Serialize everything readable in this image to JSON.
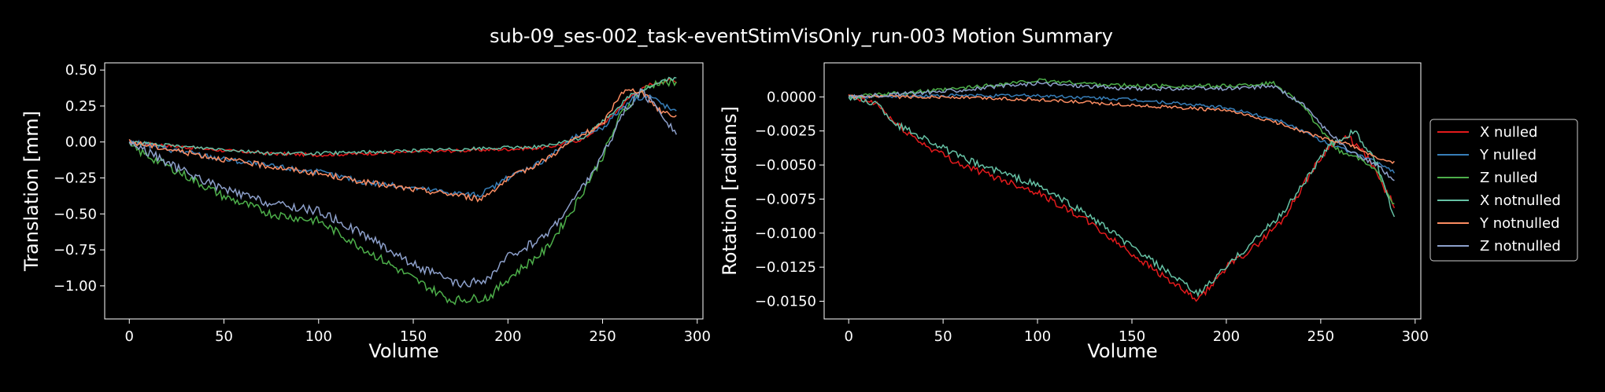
{
  "figure": {
    "title": "sub-09_ses-002_task-eventStimVisOnly_run-003 Motion Summary",
    "background": "#000000"
  },
  "legend": {
    "entries": [
      {
        "label": "X nulled",
        "color": "#e41a1c"
      },
      {
        "label": "Y nulled",
        "color": "#377eb8"
      },
      {
        "label": "Z nulled",
        "color": "#4daf4a"
      },
      {
        "label": "X notnulled",
        "color": "#66c2a5"
      },
      {
        "label": "Y notnulled",
        "color": "#fc8d62"
      },
      {
        "label": "Z notnulled",
        "color": "#8da0cb"
      }
    ]
  },
  "chart_data": [
    {
      "type": "line",
      "xlabel": "Volume",
      "ylabel": "Translation [mm]",
      "xlim": [
        -13,
        303
      ],
      "ylim": [
        -1.23,
        0.55
      ],
      "xticks": [
        0,
        50,
        100,
        150,
        200,
        250,
        300
      ],
      "yticks": [
        0.5,
        0.25,
        0.0,
        -0.25,
        -0.5,
        -0.75,
        -1.0
      ],
      "ytick_labels": [
        "0.50",
        "0.25",
        "0.00",
        "−0.25",
        "−0.50",
        "−0.75",
        "−1.00"
      ],
      "series": [
        {
          "name": "X nulled",
          "color": "#e41a1c",
          "points": [
            [
              0,
              0.0
            ],
            [
              25,
              -0.03
            ],
            [
              50,
              -0.06
            ],
            [
              75,
              -0.08
            ],
            [
              100,
              -0.09
            ],
            [
              125,
              -0.08
            ],
            [
              150,
              -0.07
            ],
            [
              175,
              -0.06
            ],
            [
              200,
              -0.05
            ],
            [
              220,
              -0.04
            ],
            [
              240,
              0.02
            ],
            [
              255,
              0.18
            ],
            [
              265,
              0.32
            ],
            [
              275,
              0.4
            ],
            [
              285,
              0.43
            ],
            [
              289,
              0.42
            ]
          ],
          "noise": 0.012
        },
        {
          "name": "Y nulled",
          "color": "#377eb8",
          "points": [
            [
              0,
              0.0
            ],
            [
              25,
              -0.06
            ],
            [
              50,
              -0.12
            ],
            [
              75,
              -0.17
            ],
            [
              100,
              -0.21
            ],
            [
              125,
              -0.28
            ],
            [
              150,
              -0.32
            ],
            [
              175,
              -0.36
            ],
            [
              185,
              -0.37
            ],
            [
              200,
              -0.25
            ],
            [
              220,
              -0.12
            ],
            [
              235,
              0.03
            ],
            [
              250,
              0.1
            ],
            [
              265,
              0.3
            ],
            [
              275,
              0.32
            ],
            [
              289,
              0.2
            ]
          ],
          "noise": 0.02
        },
        {
          "name": "Z nulled",
          "color": "#4daf4a",
          "points": [
            [
              0,
              -0.03
            ],
            [
              25,
              -0.2
            ],
            [
              50,
              -0.38
            ],
            [
              75,
              -0.5
            ],
            [
              100,
              -0.55
            ],
            [
              125,
              -0.75
            ],
            [
              150,
              -0.95
            ],
            [
              170,
              -1.1
            ],
            [
              190,
              -1.08
            ],
            [
              200,
              -0.95
            ],
            [
              220,
              -0.75
            ],
            [
              235,
              -0.45
            ],
            [
              250,
              -0.1
            ],
            [
              260,
              0.2
            ],
            [
              270,
              0.35
            ],
            [
              280,
              0.42
            ],
            [
              289,
              0.4
            ]
          ],
          "noise": 0.03
        },
        {
          "name": "X notnulled",
          "color": "#66c2a5",
          "points": [
            [
              0,
              0.0
            ],
            [
              25,
              -0.03
            ],
            [
              50,
              -0.05
            ],
            [
              75,
              -0.08
            ],
            [
              100,
              -0.08
            ],
            [
              125,
              -0.07
            ],
            [
              150,
              -0.06
            ],
            [
              175,
              -0.05
            ],
            [
              200,
              -0.04
            ],
            [
              220,
              -0.03
            ],
            [
              240,
              0.03
            ],
            [
              255,
              0.2
            ],
            [
              265,
              0.33
            ],
            [
              275,
              0.38
            ],
            [
              285,
              0.44
            ],
            [
              289,
              0.44
            ]
          ],
          "noise": 0.012
        },
        {
          "name": "Y notnulled",
          "color": "#fc8d62",
          "points": [
            [
              0,
              0.0
            ],
            [
              25,
              -0.06
            ],
            [
              50,
              -0.12
            ],
            [
              75,
              -0.17
            ],
            [
              100,
              -0.22
            ],
            [
              125,
              -0.28
            ],
            [
              150,
              -0.33
            ],
            [
              175,
              -0.37
            ],
            [
              185,
              -0.4
            ],
            [
              200,
              -0.26
            ],
            [
              220,
              -0.12
            ],
            [
              235,
              0.02
            ],
            [
              250,
              0.12
            ],
            [
              260,
              0.35
            ],
            [
              270,
              0.36
            ],
            [
              280,
              0.22
            ],
            [
              289,
              0.18
            ]
          ],
          "noise": 0.02
        },
        {
          "name": "Z notnulled",
          "color": "#8da0cb",
          "points": [
            [
              0,
              0.0
            ],
            [
              25,
              -0.18
            ],
            [
              50,
              -0.33
            ],
            [
              75,
              -0.43
            ],
            [
              100,
              -0.48
            ],
            [
              125,
              -0.65
            ],
            [
              150,
              -0.85
            ],
            [
              175,
              -1.0
            ],
            [
              190,
              -0.95
            ],
            [
              200,
              -0.8
            ],
            [
              220,
              -0.65
            ],
            [
              235,
              -0.4
            ],
            [
              250,
              -0.1
            ],
            [
              260,
              0.18
            ],
            [
              270,
              0.35
            ],
            [
              280,
              0.22
            ],
            [
              289,
              0.05
            ]
          ],
          "noise": 0.03
        }
      ]
    },
    {
      "type": "line",
      "xlabel": "Volume",
      "ylabel": "Rotation [radians]",
      "xlim": [
        -13,
        303
      ],
      "ylim": [
        -0.0163,
        0.0025
      ],
      "xticks": [
        0,
        50,
        100,
        150,
        200,
        250,
        300
      ],
      "yticks": [
        0.0,
        -0.0025,
        -0.005,
        -0.0075,
        -0.01,
        -0.0125,
        -0.015
      ],
      "ytick_labels": [
        "0.0000",
        "−0.0025",
        "−0.0050",
        "−0.0075",
        "−0.0100",
        "−0.0125",
        "−0.0150"
      ],
      "series": [
        {
          "name": "X nulled",
          "color": "#e41a1c",
          "points": [
            [
              0,
              0.0
            ],
            [
              15,
              -0.0005
            ],
            [
              25,
              -0.002
            ],
            [
              40,
              -0.0035
            ],
            [
              60,
              -0.005
            ],
            [
              80,
              -0.006
            ],
            [
              100,
              -0.007
            ],
            [
              125,
              -0.009
            ],
            [
              150,
              -0.0115
            ],
            [
              170,
              -0.0135
            ],
            [
              185,
              -0.015
            ],
            [
              200,
              -0.0125
            ],
            [
              215,
              -0.011
            ],
            [
              230,
              -0.009
            ],
            [
              245,
              -0.0055
            ],
            [
              255,
              -0.0035
            ],
            [
              265,
              -0.003
            ],
            [
              275,
              -0.0045
            ],
            [
              289,
              -0.008
            ]
          ],
          "noise": 0.00025
        },
        {
          "name": "Y nulled",
          "color": "#377eb8",
          "points": [
            [
              0,
              0.0
            ],
            [
              50,
              0.0001
            ],
            [
              100,
              0.0001
            ],
            [
              150,
              -0.0002
            ],
            [
              200,
              -0.0008
            ],
            [
              230,
              -0.0018
            ],
            [
              250,
              -0.0032
            ],
            [
              265,
              -0.004
            ],
            [
              280,
              -0.0048
            ],
            [
              289,
              -0.0055
            ]
          ],
          "noise": 0.00012
        },
        {
          "name": "Z nulled",
          "color": "#4daf4a",
          "points": [
            [
              0,
              0.0
            ],
            [
              50,
              0.0005
            ],
            [
              100,
              0.0012
            ],
            [
              150,
              0.0008
            ],
            [
              200,
              0.0008
            ],
            [
              225,
              0.001
            ],
            [
              240,
              -0.0005
            ],
            [
              250,
              -0.0025
            ],
            [
              260,
              -0.004
            ],
            [
              270,
              -0.0045
            ],
            [
              280,
              -0.0055
            ],
            [
              289,
              -0.008
            ]
          ],
          "noise": 0.00015
        },
        {
          "name": "X notnulled",
          "color": "#66c2a5",
          "points": [
            [
              0,
              0.0
            ],
            [
              15,
              -0.0005
            ],
            [
              25,
              -0.002
            ],
            [
              40,
              -0.003
            ],
            [
              60,
              -0.0045
            ],
            [
              80,
              -0.0055
            ],
            [
              100,
              -0.0065
            ],
            [
              125,
              -0.0085
            ],
            [
              150,
              -0.011
            ],
            [
              170,
              -0.013
            ],
            [
              185,
              -0.0145
            ],
            [
              200,
              -0.0125
            ],
            [
              215,
              -0.0105
            ],
            [
              230,
              -0.0085
            ],
            [
              245,
              -0.0055
            ],
            [
              255,
              -0.0035
            ],
            [
              268,
              -0.0025
            ],
            [
              280,
              -0.005
            ],
            [
              289,
              -0.009
            ]
          ],
          "noise": 0.00025
        },
        {
          "name": "Y notnulled",
          "color": "#fc8d62",
          "points": [
            [
              0,
              0.0
            ],
            [
              50,
              0.0
            ],
            [
              100,
              -0.0002
            ],
            [
              150,
              -0.0006
            ],
            [
              200,
              -0.001
            ],
            [
              230,
              -0.002
            ],
            [
              250,
              -0.003
            ],
            [
              265,
              -0.0035
            ],
            [
              280,
              -0.0045
            ],
            [
              289,
              -0.0048
            ]
          ],
          "noise": 0.00012
        },
        {
          "name": "Z notnulled",
          "color": "#8da0cb",
          "points": [
            [
              0,
              0.0
            ],
            [
              50,
              0.0004
            ],
            [
              100,
              0.001
            ],
            [
              150,
              0.0006
            ],
            [
              200,
              0.0006
            ],
            [
              225,
              0.0008
            ],
            [
              240,
              -0.0005
            ],
            [
              250,
              -0.002
            ],
            [
              265,
              -0.004
            ],
            [
              280,
              -0.005
            ],
            [
              289,
              -0.0062
            ]
          ],
          "noise": 0.00015
        }
      ]
    }
  ]
}
